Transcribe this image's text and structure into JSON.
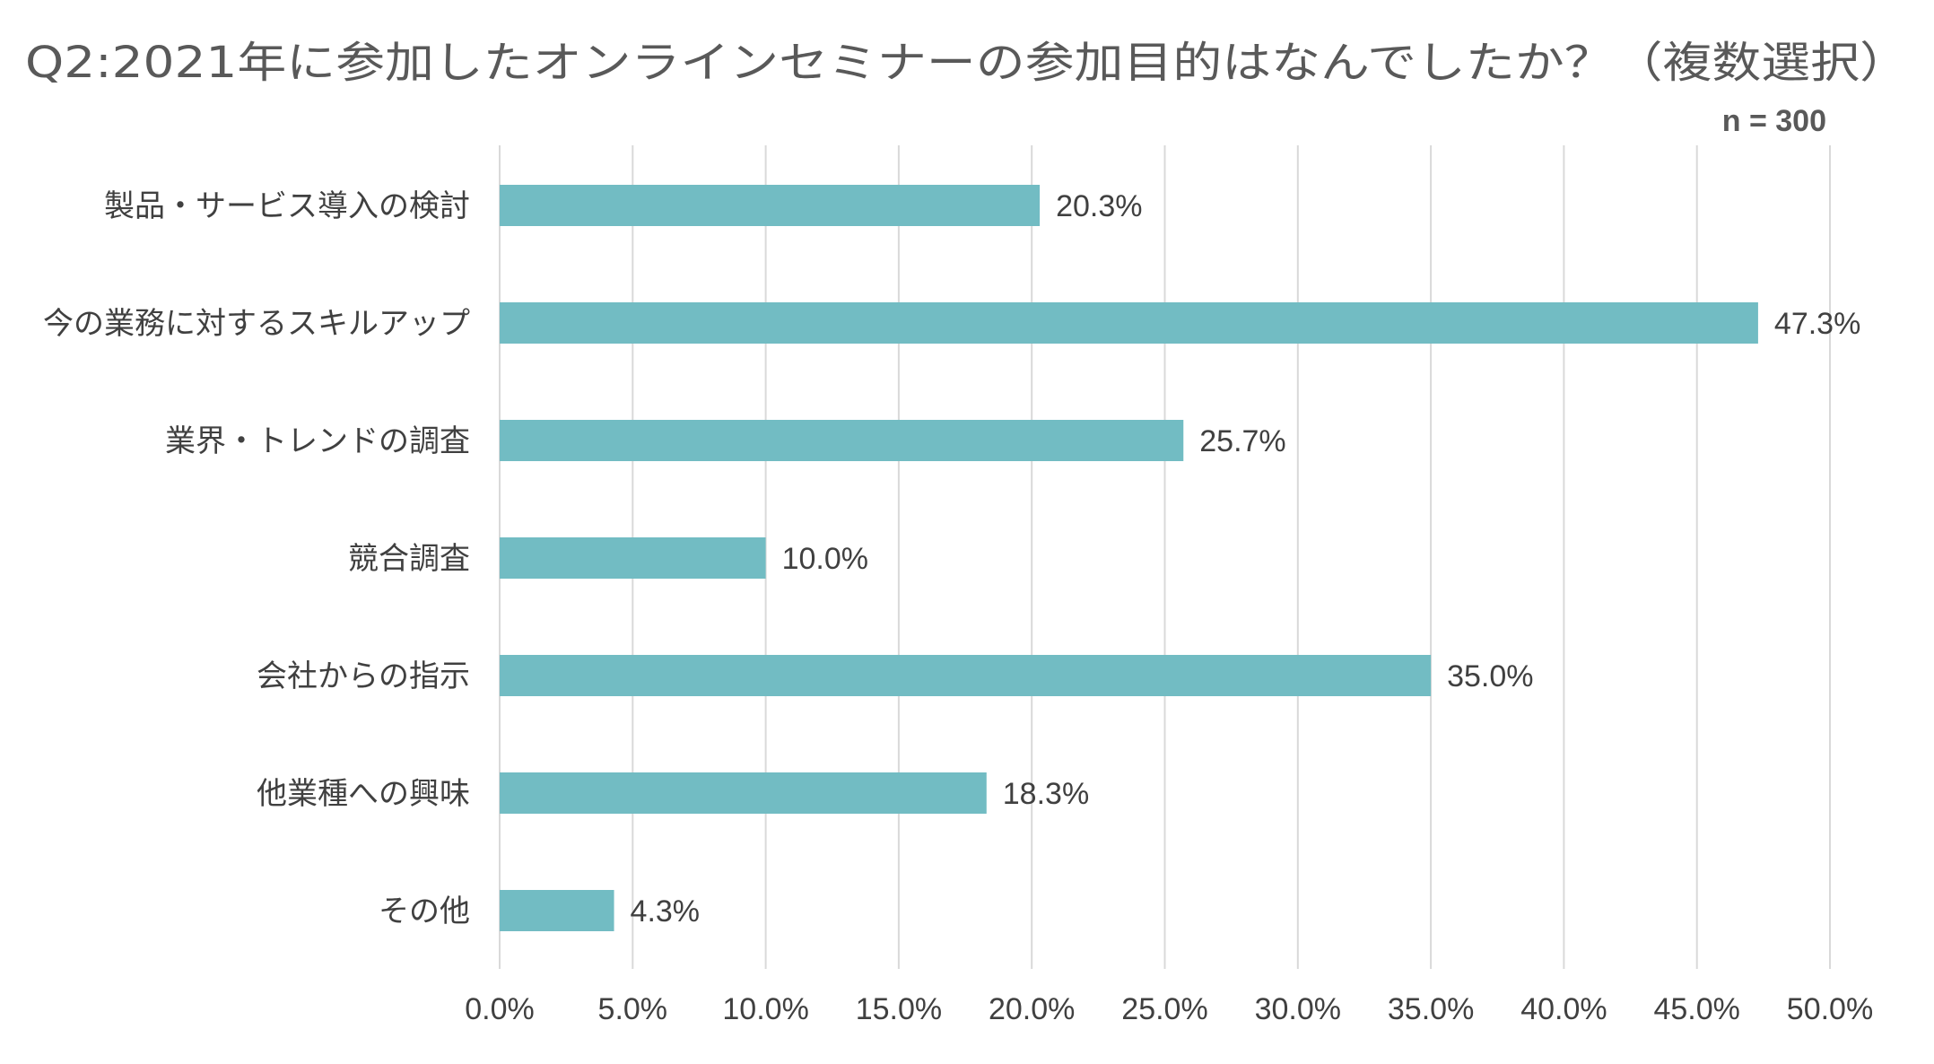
{
  "chart_data": {
    "type": "bar",
    "orientation": "horizontal",
    "title": "Q2:2021年に参加したオンラインセミナーの参加目的はなんでしたか？（複数選択）",
    "subtitle": "n = 300",
    "categories": [
      "製品・サービス導入の検討",
      "今の業務に対するスキルアップ",
      "業界・トレンドの調査",
      "競合調査",
      "会社からの指示",
      "他業種への興味",
      "その他"
    ],
    "values": [
      20.3,
      47.3,
      25.7,
      10.0,
      35.0,
      18.3,
      4.3
    ],
    "data_labels": [
      "20.3%",
      "47.3%",
      "25.7%",
      "10.0%",
      "35.0%",
      "18.3%",
      "4.3%"
    ],
    "xlim": [
      0,
      50
    ],
    "xticks": [
      0,
      5,
      10,
      15,
      20,
      25,
      30,
      35,
      40,
      45,
      50
    ],
    "xtick_labels": [
      "0.0%",
      "5.0%",
      "10.0%",
      "15.0%",
      "20.0%",
      "25.0%",
      "30.0%",
      "35.0%",
      "40.0%",
      "45.0%",
      "50.0%"
    ],
    "xlabel": "",
    "ylabel": "",
    "grid": "vertical",
    "legend": "none",
    "bar_color": "#72bcc3"
  }
}
